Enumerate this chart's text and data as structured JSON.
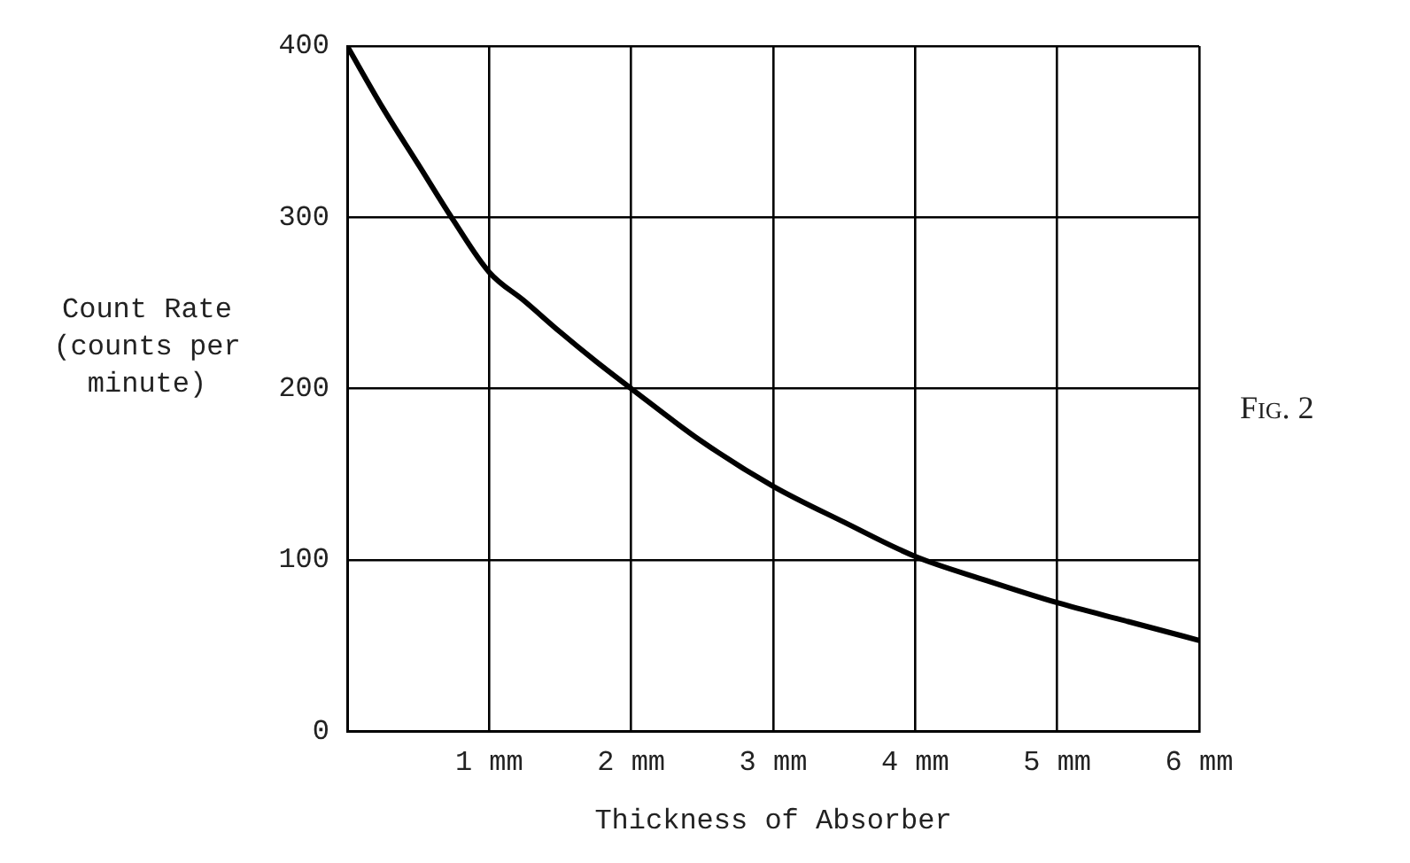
{
  "chart_data": {
    "type": "line",
    "xlabel": "Thickness of Absorber",
    "ylabel": "Count Rate (counts per minute)",
    "annotations": [
      "Fig. 2"
    ],
    "x": [
      0,
      0.25,
      0.5,
      0.75,
      1,
      1.25,
      1.5,
      1.75,
      2,
      2.5,
      3,
      3.5,
      4,
      4.5,
      5,
      5.5,
      6
    ],
    "series": [
      {
        "color": "#000000",
        "values": [
          400,
          364,
          331,
          298,
          268,
          251,
          233,
          216,
          200,
          169,
          143,
          122,
          102,
          88,
          75,
          64,
          53
        ]
      }
    ],
    "xlim": [
      0,
      6
    ],
    "xticks": [
      {
        "value": 0,
        "label": null
      },
      {
        "value": 1,
        "label": "1 mm"
      },
      {
        "value": 2,
        "label": "2 mm"
      },
      {
        "value": 3,
        "label": "3 mm"
      },
      {
        "value": 4,
        "label": "4 mm"
      },
      {
        "value": 5,
        "label": "5 mm"
      },
      {
        "value": 6,
        "label": "6 mm"
      }
    ],
    "ylim": [
      0,
      400
    ],
    "yticks": [
      0,
      100,
      200,
      300,
      400
    ],
    "grid": true,
    "legend": false,
    "marker": "none",
    "line_style": "solid"
  }
}
